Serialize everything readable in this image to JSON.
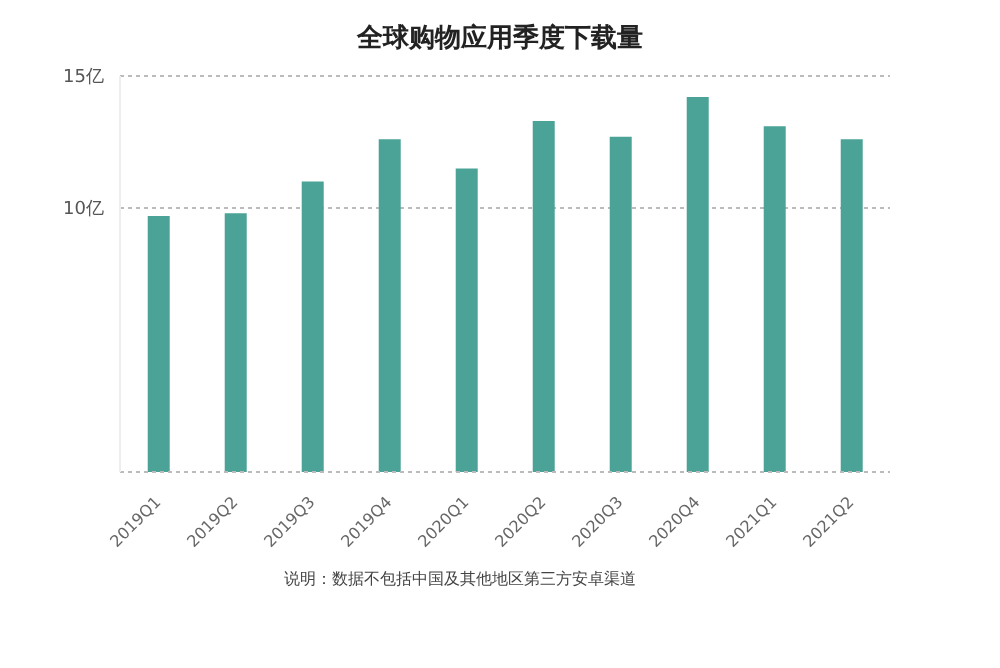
{
  "chart_data": {
    "type": "bar",
    "title": "全球购物应用季度下载量",
    "categories": [
      "2019Q1",
      "2019Q2",
      "2019Q3",
      "2019Q4",
      "2020Q1",
      "2020Q2",
      "2020Q3",
      "2020Q4",
      "2021Q1",
      "2021Q2"
    ],
    "values": [
      9.7,
      9.8,
      11.0,
      12.6,
      11.5,
      13.3,
      12.7,
      14.2,
      13.1,
      12.6
    ],
    "color": "#4aa396",
    "ylim": [
      0,
      15
    ],
    "yticks": [
      {
        "value": 10,
        "label": "10亿"
      },
      {
        "value": 15,
        "label": "15亿"
      }
    ],
    "grid": "y",
    "annotations": [
      "说明：数据不包括中国及其他地区第三方安卓渠道"
    ]
  }
}
